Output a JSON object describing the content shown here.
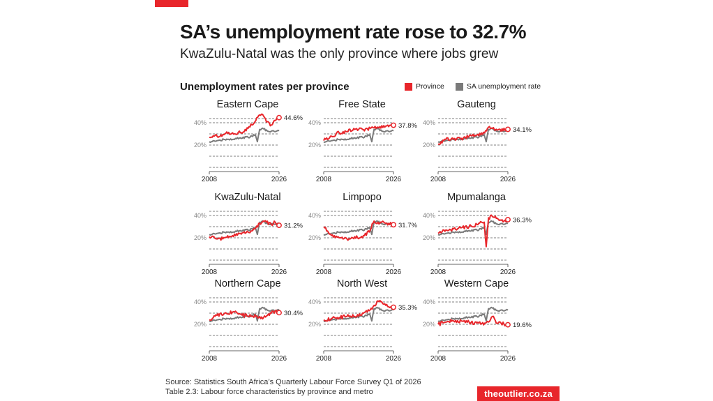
{
  "header": {
    "title": "SA’s unemployment rate rose to 32.7%",
    "subtitle": "KwaZulu-Natal was the only province where jobs grew",
    "section_title": "Unemployment rates per province"
  },
  "legend": {
    "province_label": "Province",
    "sa_label": "SA unemployment rate"
  },
  "colors": {
    "province": "#e8262b",
    "sa": "#7a7a7a",
    "grid": "#555555",
    "brand": "#e8262b"
  },
  "footer": {
    "source_line1": "Source: Statistics South Africa’s Quarterly Labour Force Survey Q1 of 2026",
    "source_line2": "Table 2.3: Labour force characteristics by province and metro",
    "brand": "theoutlier.co.za"
  },
  "chart_data": {
    "type": "line",
    "layout": "small-multiples 3x3",
    "x_ticks": [
      "2008",
      "2026"
    ],
    "y_ticks": [
      "40%",
      "20%"
    ],
    "x_range": [
      2008,
      2026
    ],
    "y_range": [
      0,
      50
    ],
    "sa_series": {
      "name": "SA unemployment rate",
      "x": [
        2008,
        2010,
        2012,
        2014,
        2016,
        2018,
        2019.9,
        2020.4,
        2021,
        2022,
        2023,
        2024,
        2025,
        2026
      ],
      "values": [
        23,
        24,
        25,
        25,
        26.5,
        27,
        29,
        23,
        34,
        34.5,
        32.5,
        32.5,
        32,
        32.7
      ]
    },
    "panels": [
      {
        "name": "Eastern Cape",
        "end_label": "44.6%",
        "x": [
          2008,
          2010,
          2012,
          2014,
          2016,
          2018,
          2019,
          2020,
          2021,
          2022,
          2023,
          2024,
          2025,
          2026
        ],
        "values": [
          27,
          28,
          30,
          31,
          31,
          35,
          38,
          42,
          47,
          46,
          41,
          38,
          42,
          44.6
        ]
      },
      {
        "name": "Free State",
        "end_label": "37.8%",
        "x": [
          2008,
          2010,
          2012,
          2014,
          2016,
          2018,
          2020,
          2022,
          2024,
          2026
        ],
        "values": [
          24,
          28,
          31,
          32,
          34,
          34,
          35,
          36,
          37,
          37.8
        ]
      },
      {
        "name": "Gauteng",
        "end_label": "34.1%",
        "x": [
          2008,
          2010,
          2012,
          2014,
          2016,
          2018,
          2020,
          2021,
          2022,
          2024,
          2026
        ],
        "values": [
          21,
          25,
          25,
          26,
          28,
          29,
          31,
          36,
          35,
          34,
          34.1
        ]
      },
      {
        "name": "KwaZulu-Natal",
        "end_label": "31.2%",
        "x": [
          2008,
          2010,
          2012,
          2014,
          2016,
          2018,
          2020,
          2021,
          2022,
          2024,
          2025,
          2026
        ],
        "values": [
          21,
          19,
          20,
          22,
          24,
          25,
          29,
          33,
          35,
          32,
          34,
          31.2
        ]
      },
      {
        "name": "Limpopo",
        "end_label": "31.7%",
        "x": [
          2008,
          2010,
          2012,
          2014,
          2016,
          2018,
          2020,
          2021,
          2022,
          2024,
          2026
        ],
        "values": [
          30,
          22,
          20,
          19,
          21,
          20,
          27,
          35,
          34,
          33,
          31.7
        ]
      },
      {
        "name": "Mpumalanga",
        "end_label": "36.3%",
        "x": [
          2008,
          2010,
          2012,
          2014,
          2016,
          2018,
          2019.9,
          2020.4,
          2021,
          2022,
          2024,
          2025,
          2026
        ],
        "values": [
          24,
          27,
          28,
          29,
          30,
          32,
          34,
          12,
          38,
          39,
          36,
          35,
          36.3
        ]
      },
      {
        "name": "Northern Cape",
        "end_label": "30.4%",
        "x": [
          2008,
          2010,
          2012,
          2014,
          2016,
          2018,
          2020,
          2022,
          2024,
          2025,
          2026
        ],
        "values": [
          24,
          28,
          30,
          31,
          29,
          27,
          27,
          26,
          30,
          32,
          30.4
        ]
      },
      {
        "name": "North West",
        "end_label": "35.3%",
        "x": [
          2008,
          2010,
          2012,
          2014,
          2016,
          2018,
          2020,
          2021,
          2022,
          2023,
          2024,
          2025,
          2026
        ],
        "values": [
          24,
          25,
          26,
          27,
          27,
          30,
          33,
          37,
          41,
          40,
          37,
          35,
          35.3
        ]
      },
      {
        "name": "Western Cape",
        "end_label": "19.6%",
        "x": [
          2008,
          2010,
          2012,
          2014,
          2016,
          2018,
          2020,
          2021,
          2022,
          2023,
          2024,
          2025,
          2026
        ],
        "values": [
          20,
          22,
          23,
          23,
          22,
          21,
          21,
          22,
          27,
          21,
          22,
          20,
          19.6
        ]
      }
    ]
  }
}
